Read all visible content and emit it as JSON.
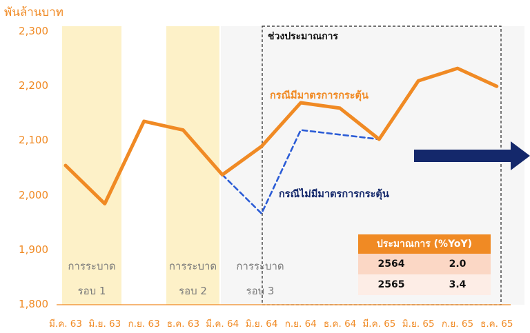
{
  "chart_data": {
    "type": "line",
    "ylabel": "พันล้านบาท",
    "ylim": [
      1800,
      2300
    ],
    "yticks": [
      "2,300",
      "2,200",
      "2,100",
      "2,000",
      "1,900",
      "1,800"
    ],
    "categories": [
      "มี.ค. 63",
      "มิ.ย. 63",
      "ก.ย. 63",
      "ธ.ค. 63",
      "มี.ค. 64",
      "มิ.ย. 64",
      "ก.ย. 64",
      "ธ.ค. 64",
      "มี.ค. 65",
      "มิ.ย. 65",
      "ก.ย. 65",
      "ธ.ค. 65"
    ],
    "series": [
      {
        "name": "กรณีมีมาตรการกระตุ้น",
        "color": "#F08A24",
        "style": "solid",
        "values": [
          2055,
          1985,
          2136,
          2120,
          2038,
          2090,
          2170,
          2160,
          2103,
          2210,
          2233,
          2200
        ]
      },
      {
        "name": "กรณีไม่มีมาตรการกระตุ้น",
        "color": "#2B5CD6",
        "style": "dashed",
        "values": [
          null,
          null,
          null,
          null,
          2038,
          1967,
          2120,
          null,
          2103,
          null,
          null,
          null
        ]
      }
    ],
    "bands": [
      {
        "label_line1": "การระบาด",
        "label_line2": "รอบ 1",
        "color": "#FDF1C8"
      },
      {
        "label_line1": "การระบาด",
        "label_line2": "รอบ 2",
        "color": "#FDF1C8"
      },
      {
        "label_line1": "การระบาด",
        "label_line2": "รอบ 3",
        "color": "#E3E3E3"
      }
    ],
    "period_label": "ช่วงประมาณการ",
    "forecast_table": {
      "header": "ประมาณการ (%YoY)",
      "rows": [
        {
          "year": "2564",
          "value": "2.0"
        },
        {
          "year": "2565",
          "value": "3.4"
        }
      ]
    },
    "grid": false,
    "arrow_color": "#14286B"
  }
}
